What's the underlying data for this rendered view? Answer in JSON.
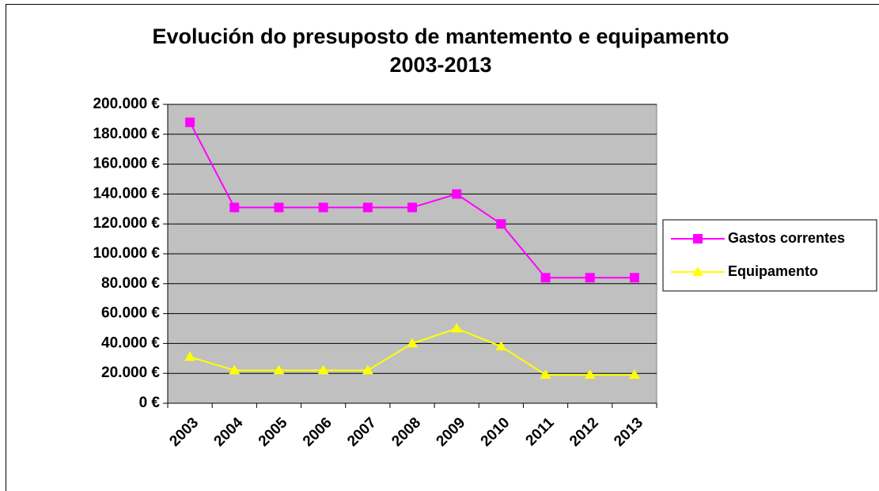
{
  "chart_data": {
    "type": "line",
    "title": [
      "Evolución do presuposto de mantemento  e equipamento",
      "2003-2013"
    ],
    "categories": [
      "2003",
      "2004",
      "2005",
      "2006",
      "2007",
      "2008",
      "2009",
      "2010",
      "2011",
      "2012",
      "2013"
    ],
    "series": [
      {
        "name": "Gastos correntes",
        "color": "#ff00ff",
        "marker": "square",
        "values": [
          188000,
          131000,
          131000,
          131000,
          131000,
          131000,
          140000,
          120000,
          84000,
          84000,
          84000
        ]
      },
      {
        "name": "Equipamento",
        "color": "#ffff00",
        "marker": "triangle",
        "values": [
          31000,
          22000,
          22000,
          22000,
          22000,
          40000,
          50000,
          38000,
          19000,
          19000,
          19000
        ]
      }
    ],
    "ylim": [
      0,
      200000
    ],
    "yticks": [
      {
        "value": 0,
        "label": "0 €"
      },
      {
        "value": 20000,
        "label": "20.000 €"
      },
      {
        "value": 40000,
        "label": "40.000 €"
      },
      {
        "value": 60000,
        "label": "60.000 €"
      },
      {
        "value": 80000,
        "label": "80.000 €"
      },
      {
        "value": 100000,
        "label": "100.000 €"
      },
      {
        "value": 120000,
        "label": "120.000 €"
      },
      {
        "value": 140000,
        "label": "140.000 €"
      },
      {
        "value": 160000,
        "label": "160.000 €"
      },
      {
        "value": 180000,
        "label": "180.000 €"
      },
      {
        "value": 200000,
        "label": "200.000 €"
      }
    ],
    "grid": true,
    "legend": "right",
    "plot_background": "#c0c0c0"
  }
}
